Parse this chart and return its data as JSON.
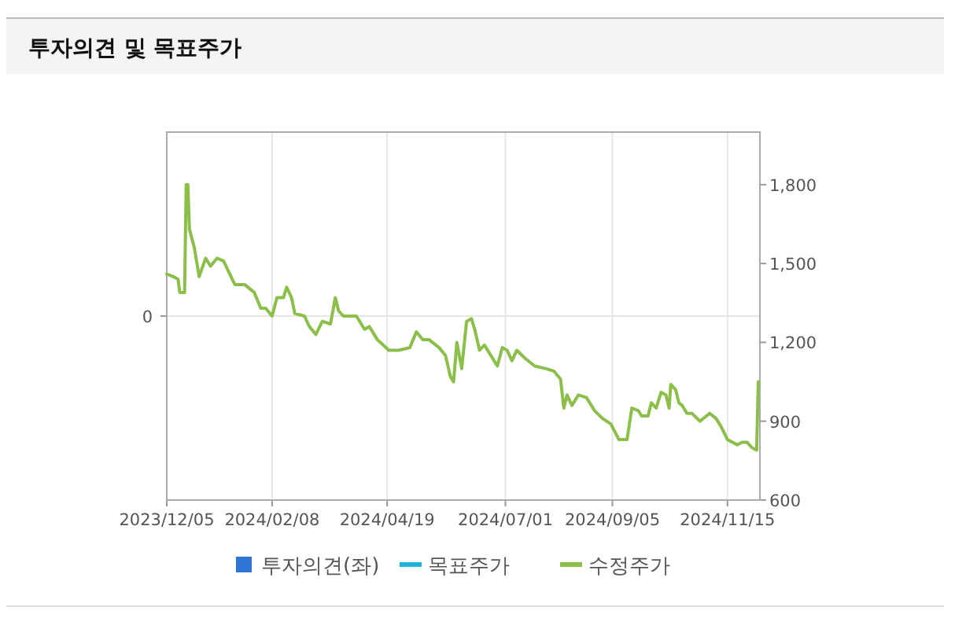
{
  "chart_data": {
    "type": "line",
    "title": "투자의견 및 목표주가",
    "x": [
      "2023-12-05",
      "2023-12-09",
      "2023-12-12",
      "2023-12-13",
      "2023-12-16",
      "2023-12-17",
      "2023-12-18",
      "2023-12-19",
      "2023-12-22",
      "2023-12-25",
      "2023-12-29",
      "2024-01-01",
      "2024-01-05",
      "2024-01-09",
      "2024-01-16",
      "2024-01-22",
      "2024-01-28",
      "2024-02-01",
      "2024-02-04",
      "2024-02-08",
      "2024-02-11",
      "2024-02-15",
      "2024-02-17",
      "2024-02-20",
      "2024-02-22",
      "2024-02-28",
      "2024-03-02",
      "2024-03-06",
      "2024-03-10",
      "2024-03-15",
      "2024-03-18",
      "2024-03-20",
      "2024-03-23",
      "2024-03-31",
      "2024-04-05",
      "2024-04-08",
      "2024-04-13",
      "2024-04-20",
      "2024-04-26",
      "2024-05-03",
      "2024-05-07",
      "2024-05-11",
      "2024-05-15",
      "2024-05-21",
      "2024-05-25",
      "2024-05-28",
      "2024-05-30",
      "2024-06-01",
      "2024-06-04",
      "2024-06-07",
      "2024-06-10",
      "2024-06-12",
      "2024-06-15",
      "2024-06-18",
      "2024-06-22",
      "2024-06-26",
      "2024-06-29",
      "2024-07-02",
      "2024-07-05",
      "2024-07-08",
      "2024-07-13",
      "2024-07-19",
      "2024-07-26",
      "2024-07-31",
      "2024-08-04",
      "2024-08-06",
      "2024-08-08",
      "2024-08-11",
      "2024-08-15",
      "2024-08-20",
      "2024-08-25",
      "2024-08-30",
      "2024-09-04",
      "2024-09-09",
      "2024-09-14",
      "2024-09-17",
      "2024-09-21",
      "2024-09-23",
      "2024-09-27",
      "2024-09-29",
      "2024-10-02",
      "2024-10-05",
      "2024-10-08",
      "2024-10-10",
      "2024-10-11",
      "2024-10-14",
      "2024-10-16",
      "2024-10-18",
      "2024-10-21",
      "2024-10-24",
      "2024-10-29",
      "2024-11-04",
      "2024-11-08",
      "2024-11-11",
      "2024-11-15",
      "2024-11-21",
      "2024-11-24",
      "2024-11-27",
      "2024-11-30",
      "2024-12-03",
      "2024-12-04"
    ],
    "series": [
      {
        "name": "투자의견(좌)",
        "type": "bar",
        "axis": "y",
        "color": "#2f75d6",
        "values": [
          null,
          null,
          null,
          null,
          null,
          null,
          null,
          null,
          null,
          null,
          null,
          null,
          null,
          null,
          null,
          null,
          null,
          null,
          null,
          null,
          null,
          null,
          null,
          null,
          null,
          null,
          null,
          null,
          null,
          null,
          null,
          null,
          null,
          null,
          null,
          null,
          null,
          null,
          null,
          null,
          null,
          null,
          null,
          null,
          null,
          null,
          null,
          null,
          null,
          null,
          null,
          null,
          null,
          null,
          null,
          null,
          null,
          null,
          null,
          null,
          null,
          null,
          null,
          null,
          null,
          null,
          null,
          null,
          null,
          null,
          null,
          null,
          null,
          null,
          null,
          null,
          null,
          null,
          null,
          null,
          null,
          null,
          null,
          null,
          null,
          null,
          null,
          null,
          null,
          null,
          null,
          null,
          null,
          null,
          null,
          null,
          null,
          null,
          null,
          null,
          null
        ]
      },
      {
        "name": "목표주가",
        "axis": "y2",
        "color": "#1fb5d9",
        "values": [
          null,
          null,
          null,
          null,
          null,
          null,
          null,
          null,
          null,
          null,
          null,
          null,
          null,
          null,
          null,
          null,
          null,
          null,
          null,
          null,
          null,
          null,
          null,
          null,
          null,
          null,
          null,
          null,
          null,
          null,
          null,
          null,
          null,
          null,
          null,
          null,
          null,
          null,
          null,
          null,
          null,
          null,
          null,
          null,
          null,
          null,
          null,
          null,
          null,
          null,
          null,
          null,
          null,
          null,
          null,
          null,
          null,
          null,
          null,
          null,
          null,
          null,
          null,
          null,
          null,
          null,
          null,
          null,
          null,
          null,
          null,
          null,
          null,
          null,
          null,
          null,
          null,
          null,
          null,
          null,
          null,
          null,
          null,
          null,
          null,
          null,
          null,
          null,
          null,
          null,
          null,
          null,
          null,
          null,
          null,
          null,
          null,
          null,
          null,
          null,
          null
        ]
      },
      {
        "name": "수정주가",
        "axis": "y2",
        "color": "#8cbf4a",
        "values": [
          1460,
          1450,
          1440,
          1390,
          1390,
          1800,
          1800,
          1630,
          1560,
          1450,
          1520,
          1490,
          1520,
          1510,
          1420,
          1420,
          1390,
          1330,
          1330,
          1300,
          1370,
          1370,
          1410,
          1370,
          1310,
          1300,
          1260,
          1230,
          1280,
          1270,
          1370,
          1320,
          1300,
          1300,
          1250,
          1260,
          1210,
          1170,
          1170,
          1180,
          1240,
          1210,
          1210,
          1180,
          1150,
          1070,
          1050,
          1200,
          1100,
          1280,
          1290,
          1250,
          1170,
          1190,
          1150,
          1110,
          1180,
          1170,
          1130,
          1170,
          1140,
          1110,
          1100,
          1090,
          1060,
          950,
          1000,
          960,
          1000,
          990,
          940,
          910,
          890,
          830,
          830,
          950,
          940,
          920,
          920,
          970,
          950,
          1010,
          1000,
          950,
          1040,
          1020,
          970,
          960,
          930,
          930,
          900,
          930,
          910,
          880,
          830,
          810,
          820,
          820,
          800,
          790,
          1050
        ]
      }
    ],
    "xlim": [
      "2023-12-05",
      "2024-12-05"
    ],
    "xticks": [
      {
        "value": "2023-12-05",
        "label": "2023/12/05"
      },
      {
        "value": "2024-02-08",
        "label": "2024/02/08"
      },
      {
        "value": "2024-04-19",
        "label": "2024/04/19"
      },
      {
        "value": "2024-07-01",
        "label": "2024/07/01"
      },
      {
        "value": "2024-09-05",
        "label": "2024/09/05"
      },
      {
        "value": "2024-11-15",
        "label": "2024/11/15"
      }
    ],
    "annotations": [
      "0"
    ],
    "y2lim": [
      600,
      2000
    ],
    "y2ticks": [
      600,
      900,
      {
        "value": 1200,
        "label": "1,200"
      },
      {
        "value": 1500,
        "label": "1,500"
      },
      {
        "value": 1800,
        "label": "1,800"
      }
    ],
    "grid": true,
    "legend": "bottom"
  }
}
